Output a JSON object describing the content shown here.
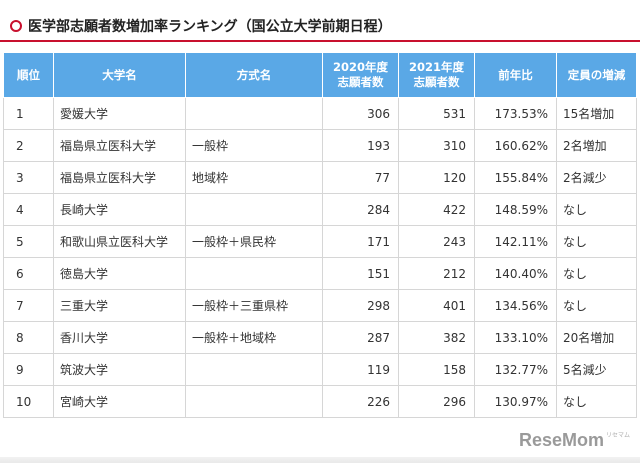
{
  "title": "医学部志願者数増加率ランキング（国公立大学前期日程）",
  "table": {
    "headers": [
      "順位",
      "大学名",
      "方式名",
      "2020年度\n志願者数",
      "2021年度\n志願者数",
      "前年比",
      "定員の増減"
    ],
    "rows": [
      [
        "1",
        "愛媛大学",
        "",
        "306",
        "531",
        "173.53%",
        "15名増加"
      ],
      [
        "2",
        "福島県立医科大学",
        "一般枠",
        "193",
        "310",
        "160.62%",
        "2名増加"
      ],
      [
        "3",
        "福島県立医科大学",
        "地域枠",
        "77",
        "120",
        "155.84%",
        "2名減少"
      ],
      [
        "4",
        "長崎大学",
        "",
        "284",
        "422",
        "148.59%",
        "なし"
      ],
      [
        "5",
        "和歌山県立医科大学",
        "一般枠＋県民枠",
        "171",
        "243",
        "142.11%",
        "なし"
      ],
      [
        "6",
        "徳島大学",
        "",
        "151",
        "212",
        "140.40%",
        "なし"
      ],
      [
        "7",
        "三重大学",
        "一般枠＋三重県枠",
        "298",
        "401",
        "134.56%",
        "なし"
      ],
      [
        "8",
        "香川大学",
        "一般枠＋地域枠",
        "287",
        "382",
        "133.10%",
        "20名増加"
      ],
      [
        "9",
        "筑波大学",
        "",
        "119",
        "158",
        "132.77%",
        "5名減少"
      ],
      [
        "10",
        "宮崎大学",
        "",
        "226",
        "296",
        "130.97%",
        "なし"
      ]
    ]
  },
  "watermark": {
    "brand": "ReseMom",
    "sub": "リセマム"
  }
}
